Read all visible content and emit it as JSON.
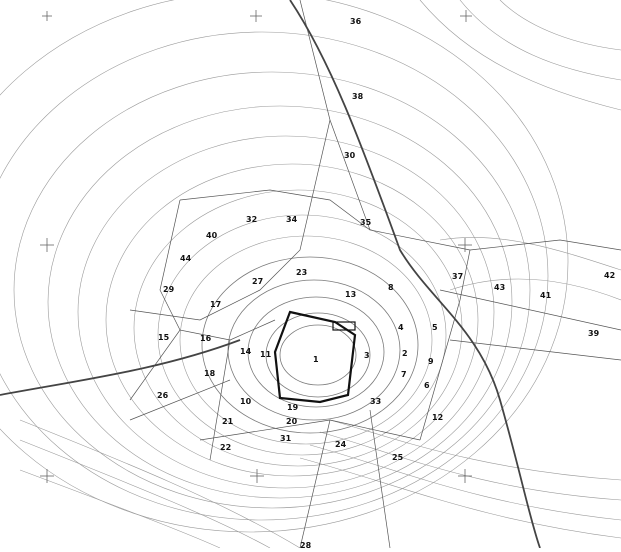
{
  "map": {
    "labels": [
      "1",
      "2",
      "3",
      "4",
      "5",
      "6",
      "7",
      "8",
      "9",
      "10",
      "11",
      "12",
      "13",
      "14",
      "15",
      "16",
      "17",
      "18",
      "19",
      "20",
      "21",
      "22",
      "23",
      "24",
      "25",
      "26",
      "27",
      "28",
      "29",
      "30",
      "31",
      "32",
      "33",
      "34",
      "35",
      "36",
      "37",
      "38",
      "39",
      "40",
      "41",
      "42",
      "43",
      "44"
    ],
    "colors": {
      "background": "#ffffff",
      "contour": "#7a7a7a",
      "parcel": "#555555",
      "road": "#444444",
      "summit": "#111111"
    }
  }
}
